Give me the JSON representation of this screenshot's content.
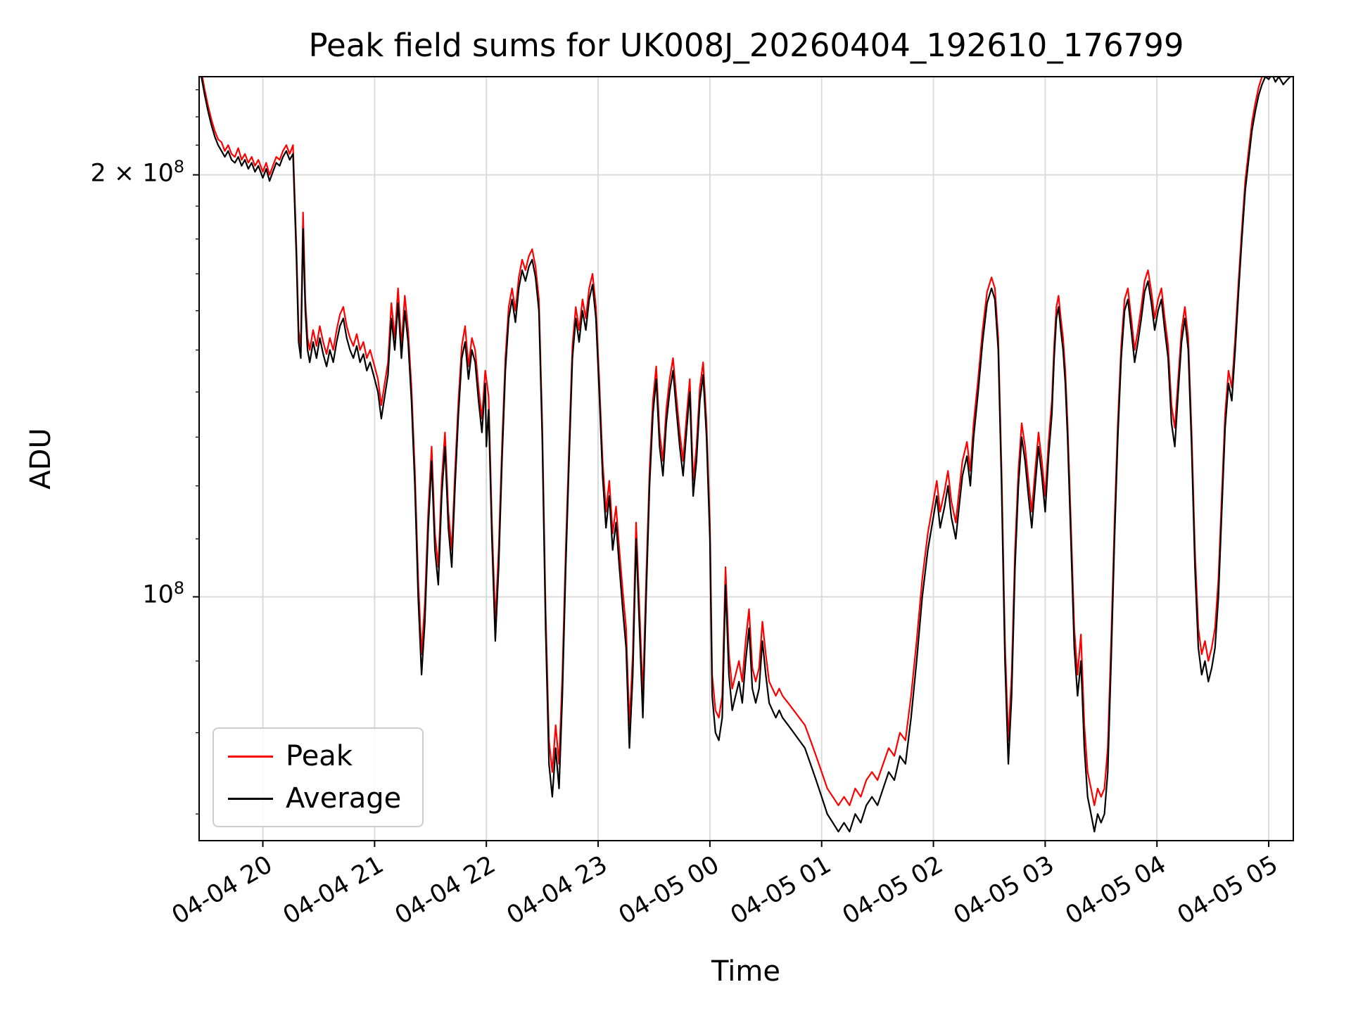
{
  "chart_data": {
    "type": "line",
    "title": "Peak field sums for UK008J_20260404_192610_176799",
    "xlabel": "Time",
    "ylabel": "ADU",
    "yscale": "log",
    "grid": true,
    "xlim": [
      19.43,
      29.22
    ],
    "ylim": [
      67000000.0,
      235000000.0
    ],
    "x_unit": "hours since 2026-04-04 00:00",
    "value_scale": 1000000.0,
    "colors": {
      "grid": "#d9d9d9",
      "axes": "#000000",
      "legend_border": "#cccccc"
    },
    "x_ticks": [
      {
        "value": 20,
        "label": "04-04 20"
      },
      {
        "value": 21,
        "label": "04-04 21"
      },
      {
        "value": 22,
        "label": "04-04 22"
      },
      {
        "value": 23,
        "label": "04-04 23"
      },
      {
        "value": 24,
        "label": "04-05 00"
      },
      {
        "value": 25,
        "label": "04-05 01"
      },
      {
        "value": 26,
        "label": "04-05 02"
      },
      {
        "value": 27,
        "label": "04-05 03"
      },
      {
        "value": 28,
        "label": "04-05 04"
      },
      {
        "value": 29,
        "label": "04-05 05"
      }
    ],
    "y_ticks": [
      {
        "value": 200000000.0,
        "text": "2 × 10",
        "exp": "8"
      },
      {
        "value": 100000000.0,
        "text": "10",
        "exp": "8"
      }
    ],
    "y_minor_ticks": [
      70000000.0,
      80000000.0,
      90000000.0,
      110000000.0,
      120000000.0,
      130000000.0,
      140000000.0,
      150000000.0,
      160000000.0,
      170000000.0,
      180000000.0,
      190000000.0,
      210000000.0,
      220000000.0,
      230000000.0
    ],
    "legend": {
      "position": "lower left",
      "entries": [
        {
          "label": "Peak",
          "color": "#ff0000"
        },
        {
          "label": "Average",
          "color": "#000000"
        }
      ]
    },
    "series_note": "points are [time_hours, average_MADU, peak_MADU]; values in millions of ADU",
    "points": [
      [
        19.45,
        235,
        237
      ],
      [
        19.48,
        228,
        230
      ],
      [
        19.51,
        222,
        224
      ],
      [
        19.54,
        217,
        219
      ],
      [
        19.57,
        213,
        215
      ],
      [
        19.6,
        210,
        212
      ],
      [
        19.63,
        208,
        211
      ],
      [
        19.66,
        206,
        208
      ],
      [
        19.69,
        208,
        210
      ],
      [
        19.72,
        205,
        207
      ],
      [
        19.75,
        204,
        206
      ],
      [
        19.78,
        206,
        209
      ],
      [
        19.81,
        203,
        205
      ],
      [
        19.84,
        205,
        207
      ],
      [
        19.87,
        202,
        204
      ],
      [
        19.9,
        204,
        206
      ],
      [
        19.93,
        201,
        203
      ],
      [
        19.96,
        203,
        205
      ],
      [
        20.0,
        199,
        201
      ],
      [
        20.03,
        202,
        204
      ],
      [
        20.06,
        198,
        200
      ],
      [
        20.09,
        201,
        203
      ],
      [
        20.12,
        204,
        206
      ],
      [
        20.15,
        203,
        205
      ],
      [
        20.18,
        206,
        208
      ],
      [
        20.21,
        208,
        210
      ],
      [
        20.24,
        205,
        207
      ],
      [
        20.27,
        207,
        210
      ],
      [
        20.3,
        175,
        178
      ],
      [
        20.32,
        152,
        155
      ],
      [
        20.34,
        148,
        151
      ],
      [
        20.36,
        183,
        188
      ],
      [
        20.38,
        160,
        163
      ],
      [
        20.4,
        150,
        153
      ],
      [
        20.42,
        147,
        150
      ],
      [
        20.45,
        152,
        155
      ],
      [
        20.48,
        148,
        151
      ],
      [
        20.51,
        153,
        156
      ],
      [
        20.54,
        149,
        152
      ],
      [
        20.57,
        146,
        149
      ],
      [
        20.6,
        150,
        153
      ],
      [
        20.63,
        147,
        150
      ],
      [
        20.66,
        152,
        155
      ],
      [
        20.69,
        156,
        159
      ],
      [
        20.72,
        158,
        161
      ],
      [
        20.75,
        153,
        156
      ],
      [
        20.78,
        150,
        153
      ],
      [
        20.81,
        148,
        151
      ],
      [
        20.84,
        151,
        154
      ],
      [
        20.87,
        147,
        150
      ],
      [
        20.9,
        149,
        152
      ],
      [
        20.93,
        145,
        148
      ],
      [
        20.96,
        147,
        150
      ],
      [
        21.0,
        143,
        146
      ],
      [
        21.03,
        140,
        143
      ],
      [
        21.06,
        134,
        137
      ],
      [
        21.09,
        139,
        142
      ],
      [
        21.12,
        144,
        147
      ],
      [
        21.15,
        158,
        162
      ],
      [
        21.18,
        150,
        153
      ],
      [
        21.21,
        162,
        166
      ],
      [
        21.24,
        148,
        151
      ],
      [
        21.27,
        160,
        164
      ],
      [
        21.3,
        152,
        155
      ],
      [
        21.33,
        138,
        141
      ],
      [
        21.36,
        120,
        123
      ],
      [
        21.39,
        100,
        103
      ],
      [
        21.42,
        88,
        91
      ],
      [
        21.45,
        96,
        99
      ],
      [
        21.48,
        112,
        115
      ],
      [
        21.51,
        125,
        128
      ],
      [
        21.54,
        108,
        111
      ],
      [
        21.57,
        102,
        105
      ],
      [
        21.6,
        118,
        121
      ],
      [
        21.63,
        128,
        131
      ],
      [
        21.66,
        112,
        115
      ],
      [
        21.69,
        105,
        108
      ],
      [
        21.72,
        120,
        123
      ],
      [
        21.75,
        135,
        138
      ],
      [
        21.78,
        148,
        151
      ],
      [
        21.81,
        152,
        156
      ],
      [
        21.84,
        143,
        146
      ],
      [
        21.87,
        150,
        153
      ],
      [
        21.9,
        147,
        150
      ],
      [
        21.93,
        138,
        141
      ],
      [
        21.96,
        131,
        134
      ],
      [
        21.99,
        142,
        145
      ],
      [
        22.0,
        128,
        143
      ],
      [
        22.02,
        136,
        139
      ],
      [
        22.05,
        110,
        113
      ],
      [
        22.08,
        93,
        96
      ],
      [
        22.11,
        105,
        108
      ],
      [
        22.14,
        125,
        128
      ],
      [
        22.17,
        145,
        148
      ],
      [
        22.2,
        158,
        161
      ],
      [
        22.23,
        163,
        166
      ],
      [
        22.26,
        157,
        160
      ],
      [
        22.29,
        166,
        169
      ],
      [
        22.32,
        171,
        174
      ],
      [
        22.35,
        168,
        171
      ],
      [
        22.38,
        172,
        175
      ],
      [
        22.41,
        174,
        177
      ],
      [
        22.44,
        169,
        172
      ],
      [
        22.47,
        160,
        163
      ],
      [
        22.5,
        130,
        133
      ],
      [
        22.53,
        95,
        98
      ],
      [
        22.56,
        76,
        79
      ],
      [
        22.59,
        72,
        75
      ],
      [
        22.62,
        78,
        81
      ],
      [
        22.65,
        73,
        76
      ],
      [
        22.68,
        85,
        88
      ],
      [
        22.71,
        105,
        108
      ],
      [
        22.74,
        125,
        128
      ],
      [
        22.77,
        148,
        151
      ],
      [
        22.8,
        158,
        161
      ],
      [
        22.83,
        152,
        155
      ],
      [
        22.86,
        160,
        163
      ],
      [
        22.89,
        155,
        158
      ],
      [
        22.92,
        163,
        166
      ],
      [
        22.95,
        167,
        170
      ],
      [
        22.98,
        158,
        161
      ],
      [
        23.01,
        140,
        143
      ],
      [
        23.04,
        122,
        125
      ],
      [
        23.07,
        112,
        115
      ],
      [
        23.1,
        118,
        121
      ],
      [
        23.13,
        108,
        111
      ],
      [
        23.16,
        113,
        116
      ],
      [
        23.19,
        105,
        108
      ],
      [
        23.22,
        98,
        101
      ],
      [
        23.25,
        92,
        95
      ],
      [
        23.28,
        78,
        81
      ],
      [
        23.31,
        88,
        91
      ],
      [
        23.34,
        110,
        113
      ],
      [
        23.37,
        95,
        98
      ],
      [
        23.4,
        82,
        85
      ],
      [
        23.43,
        100,
        103
      ],
      [
        23.46,
        120,
        123
      ],
      [
        23.49,
        135,
        138
      ],
      [
        23.52,
        143,
        146
      ],
      [
        23.55,
        128,
        131
      ],
      [
        23.58,
        122,
        125
      ],
      [
        23.61,
        133,
        136
      ],
      [
        23.64,
        140,
        143
      ],
      [
        23.67,
        145,
        148
      ],
      [
        23.7,
        136,
        139
      ],
      [
        23.73,
        128,
        131
      ],
      [
        23.76,
        122,
        125
      ],
      [
        23.79,
        131,
        134
      ],
      [
        23.82,
        140,
        143
      ],
      [
        23.85,
        118,
        121
      ],
      [
        23.88,
        125,
        128
      ],
      [
        23.91,
        138,
        141
      ],
      [
        23.94,
        144,
        147
      ],
      [
        23.97,
        130,
        133
      ],
      [
        24.0,
        110,
        113
      ],
      [
        24.02,
        85,
        88
      ],
      [
        24.05,
        80,
        83
      ],
      [
        24.08,
        79,
        82
      ],
      [
        24.11,
        82,
        85
      ],
      [
        24.14,
        102,
        105
      ],
      [
        24.17,
        88,
        91
      ],
      [
        24.2,
        83,
        86
      ],
      [
        24.23,
        85,
        88
      ],
      [
        24.26,
        87,
        90
      ],
      [
        24.29,
        84,
        87
      ],
      [
        24.32,
        90,
        93
      ],
      [
        24.35,
        95,
        98
      ],
      [
        24.38,
        86,
        89
      ],
      [
        24.41,
        84,
        87
      ],
      [
        24.44,
        86,
        89
      ],
      [
        24.47,
        93,
        96
      ],
      [
        24.5,
        88,
        91
      ],
      [
        24.53,
        84,
        87
      ],
      [
        24.56,
        83,
        86
      ],
      [
        24.59,
        82,
        85
      ],
      [
        24.62,
        83,
        86
      ],
      [
        24.65,
        82,
        85
      ],
      [
        24.7,
        81,
        84
      ],
      [
        24.75,
        80,
        83
      ],
      [
        24.8,
        79,
        82
      ],
      [
        24.85,
        78,
        81
      ],
      [
        24.9,
        76,
        79
      ],
      [
        24.95,
        74,
        77
      ],
      [
        25.0,
        72,
        75
      ],
      [
        25.05,
        70,
        73
      ],
      [
        25.1,
        69,
        72
      ],
      [
        25.15,
        68,
        71
      ],
      [
        25.2,
        69,
        72
      ],
      [
        25.25,
        68,
        71
      ],
      [
        25.3,
        70,
        73
      ],
      [
        25.35,
        69,
        72
      ],
      [
        25.4,
        71,
        74
      ],
      [
        25.45,
        72,
        75
      ],
      [
        25.5,
        71,
        74
      ],
      [
        25.55,
        73,
        76
      ],
      [
        25.6,
        75,
        78
      ],
      [
        25.65,
        74,
        77
      ],
      [
        25.7,
        77,
        80
      ],
      [
        25.75,
        76,
        79
      ],
      [
        25.8,
        82,
        85
      ],
      [
        25.85,
        90,
        93
      ],
      [
        25.9,
        100,
        103
      ],
      [
        25.95,
        108,
        111
      ],
      [
        26.0,
        114,
        117
      ],
      [
        26.03,
        118,
        121
      ],
      [
        26.06,
        112,
        115
      ],
      [
        26.1,
        116,
        119
      ],
      [
        26.13,
        120,
        123
      ],
      [
        26.16,
        114,
        117
      ],
      [
        26.2,
        110,
        113
      ],
      [
        26.23,
        116,
        119
      ],
      [
        26.26,
        122,
        125
      ],
      [
        26.3,
        126,
        129
      ],
      [
        26.33,
        120,
        123
      ],
      [
        26.36,
        130,
        133
      ],
      [
        26.4,
        140,
        143
      ],
      [
        26.44,
        152,
        155
      ],
      [
        26.48,
        162,
        165
      ],
      [
        26.52,
        166,
        169
      ],
      [
        26.55,
        163,
        166
      ],
      [
        26.58,
        150,
        153
      ],
      [
        26.61,
        120,
        123
      ],
      [
        26.64,
        90,
        93
      ],
      [
        26.67,
        76,
        79
      ],
      [
        26.7,
        85,
        88
      ],
      [
        26.73,
        105,
        108
      ],
      [
        26.76,
        120,
        123
      ],
      [
        26.79,
        130,
        133
      ],
      [
        26.82,
        125,
        128
      ],
      [
        26.85,
        118,
        121
      ],
      [
        26.88,
        112,
        115
      ],
      [
        26.91,
        120,
        123
      ],
      [
        26.94,
        128,
        131
      ],
      [
        26.97,
        122,
        125
      ],
      [
        27.0,
        115,
        118
      ],
      [
        27.03,
        126,
        129
      ],
      [
        27.06,
        135,
        138
      ],
      [
        27.08,
        148,
        151
      ],
      [
        27.1,
        158,
        161
      ],
      [
        27.12,
        161,
        164
      ],
      [
        27.14,
        155,
        158
      ],
      [
        27.16,
        150,
        153
      ],
      [
        27.18,
        142,
        145
      ],
      [
        27.2,
        130,
        133
      ],
      [
        27.23,
        110,
        113
      ],
      [
        27.26,
        92,
        95
      ],
      [
        27.29,
        85,
        88
      ],
      [
        27.32,
        90,
        94
      ],
      [
        27.35,
        78,
        81
      ],
      [
        27.38,
        72,
        75
      ],
      [
        27.41,
        70,
        73
      ],
      [
        27.44,
        68,
        71
      ],
      [
        27.47,
        70,
        73
      ],
      [
        27.5,
        69,
        72
      ],
      [
        27.53,
        70,
        73
      ],
      [
        27.56,
        75,
        78
      ],
      [
        27.59,
        90,
        93
      ],
      [
        27.62,
        110,
        113
      ],
      [
        27.65,
        130,
        133
      ],
      [
        27.68,
        148,
        151
      ],
      [
        27.71,
        160,
        163
      ],
      [
        27.74,
        163,
        166
      ],
      [
        27.77,
        155,
        158
      ],
      [
        27.8,
        147,
        150
      ],
      [
        27.83,
        152,
        155
      ],
      [
        27.86,
        158,
        161
      ],
      [
        27.89,
        165,
        168
      ],
      [
        27.92,
        168,
        171
      ],
      [
        27.95,
        162,
        165
      ],
      [
        27.98,
        155,
        158
      ],
      [
        28.01,
        160,
        163
      ],
      [
        28.04,
        163,
        166
      ],
      [
        28.07,
        155,
        158
      ],
      [
        28.1,
        148,
        151
      ],
      [
        28.13,
        133,
        137
      ],
      [
        28.16,
        128,
        132
      ],
      [
        28.19,
        140,
        143
      ],
      [
        28.22,
        152,
        155
      ],
      [
        28.25,
        158,
        161
      ],
      [
        28.28,
        150,
        153
      ],
      [
        28.31,
        128,
        131
      ],
      [
        28.34,
        105,
        108
      ],
      [
        28.37,
        92,
        95
      ],
      [
        28.4,
        88,
        91
      ],
      [
        28.43,
        90,
        93
      ],
      [
        28.46,
        87,
        90
      ],
      [
        28.49,
        89,
        92
      ],
      [
        28.52,
        92,
        95
      ],
      [
        28.55,
        100,
        103
      ],
      [
        28.58,
        115,
        118
      ],
      [
        28.61,
        132,
        135
      ],
      [
        28.64,
        142,
        145
      ],
      [
        28.67,
        138,
        141
      ],
      [
        28.7,
        150,
        153
      ],
      [
        28.73,
        165,
        168
      ],
      [
        28.76,
        180,
        183
      ],
      [
        28.79,
        195,
        198
      ],
      [
        28.82,
        205,
        208
      ],
      [
        28.85,
        215,
        218
      ],
      [
        28.88,
        222,
        225
      ],
      [
        28.91,
        228,
        231
      ],
      [
        28.94,
        232,
        235
      ],
      [
        28.97,
        235,
        238
      ],
      [
        29.0,
        234,
        237
      ],
      [
        29.03,
        236,
        239
      ],
      [
        29.06,
        233,
        236
      ],
      [
        29.09,
        235,
        238
      ],
      [
        29.13,
        232,
        235
      ],
      [
        29.17,
        234,
        237
      ],
      [
        29.22,
        236,
        239
      ]
    ]
  }
}
